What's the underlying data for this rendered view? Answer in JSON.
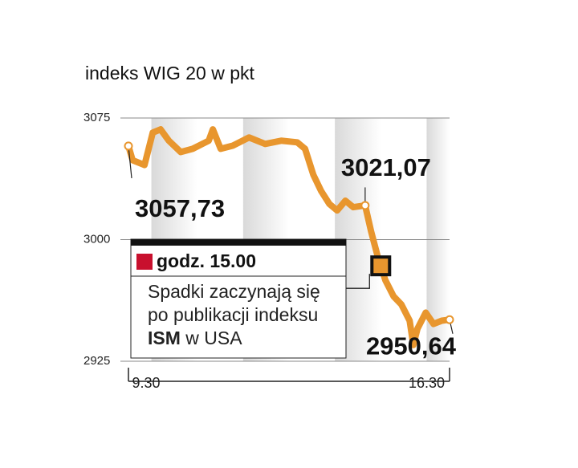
{
  "chart_data": {
    "type": "line",
    "title": "indeks WIG 20 w pkt",
    "x": [
      9.5,
      9.59,
      9.85,
      10.03,
      10.2,
      10.38,
      10.64,
      10.9,
      11.25,
      11.34,
      11.51,
      11.78,
      12.13,
      12.48,
      12.83,
      13.18,
      13.35,
      13.53,
      13.7,
      13.88,
      14.05,
      14.23,
      14.4,
      14.66,
      14.79,
      14.93,
      15.1,
      15.28,
      15.45,
      15.63,
      15.71,
      15.8,
      15.98,
      16.15,
      16.33,
      16.5
    ],
    "series": [
      {
        "name": "WIG 20",
        "color": "#e8962e",
        "values": [
          3057.73,
          3049,
          3046,
          3066,
          3068,
          3061,
          3054,
          3056,
          3061,
          3068,
          3056,
          3058,
          3063,
          3059,
          3061,
          3060,
          3056,
          3040,
          3030,
          3022,
          3018,
          3024,
          3020,
          3021.07,
          3005,
          2990,
          2975,
          2965,
          2960,
          2950,
          2935,
          2945,
          2955,
          2948,
          2950,
          2950.64
        ]
      }
    ],
    "xlim": [
      9.5,
      16.5
    ],
    "xticks": [
      {
        "value": 9.5,
        "label": "9.30"
      },
      {
        "value": 16.5,
        "label": "16.30"
      }
    ],
    "ylim": [
      2925,
      3075
    ],
    "yticks": [
      2925,
      3000,
      3075
    ],
    "grid": true,
    "annotations": [
      {
        "x": 9.5,
        "y": 3057.73,
        "label": "3057,73"
      },
      {
        "x": 14.66,
        "y": 3021.07,
        "label": "3021,07"
      },
      {
        "x": 16.5,
        "y": 2950.64,
        "label": "2950,64"
      }
    ],
    "callout": {
      "x": 15,
      "title": "godz. 15.00",
      "lines": [
        "Spadki zaczynają się",
        "po publikacji indeksu"
      ],
      "emph": "ISM",
      "tail": "w USA"
    }
  }
}
